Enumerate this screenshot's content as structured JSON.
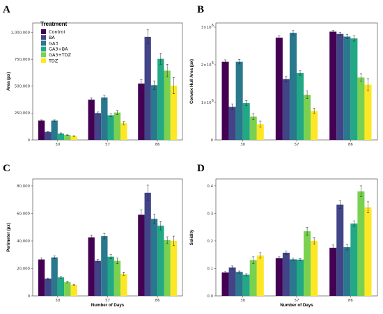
{
  "legend": {
    "title": "Treatment",
    "entries": [
      "Control",
      "BA",
      "GA3",
      "GA3+BA",
      "GA3+TDZ",
      "TDZ"
    ]
  },
  "colors": [
    "#440154",
    "#414487",
    "#2a788e",
    "#22a884",
    "#7ad151",
    "#fde725"
  ],
  "chart_data": [
    {
      "type": "bar",
      "panel": "A",
      "xlabel": "",
      "ylabel": "Area (px)",
      "categories": [
        "30",
        "57",
        "86"
      ],
      "ylim": [
        0,
        1050000
      ],
      "yticks": [
        0,
        250000,
        500000,
        750000,
        1000000
      ],
      "yticklabels": [
        "0",
        "250,000",
        "500,000",
        "750,000",
        "1,000,000"
      ],
      "series": [
        {
          "name": "Control",
          "values": [
            180000,
            375000,
            525000
          ],
          "err": [
            8000,
            15000,
            35000
          ]
        },
        {
          "name": "BA",
          "values": [
            75000,
            250000,
            960000
          ],
          "err": [
            5000,
            10000,
            65000
          ]
        },
        {
          "name": "GA3",
          "values": [
            180000,
            395000,
            510000
          ],
          "err": [
            8000,
            20000,
            40000
          ]
        },
        {
          "name": "GA3+BA",
          "values": [
            60000,
            230000,
            755000
          ],
          "err": [
            5000,
            12000,
            50000
          ]
        },
        {
          "name": "GA3+TDZ",
          "values": [
            45000,
            255000,
            645000
          ],
          "err": [
            4000,
            18000,
            60000
          ]
        },
        {
          "name": "TDZ",
          "values": [
            35000,
            155000,
            505000
          ],
          "err": [
            4000,
            15000,
            75000
          ]
        }
      ]
    },
    {
      "type": "bar",
      "panel": "B",
      "xlabel": "",
      "ylabel": "Convex Hull Area (px)",
      "categories": [
        "30",
        "57",
        "86"
      ],
      "ylim": [
        0,
        3
      ],
      "yticks": [
        0,
        1,
        2,
        3
      ],
      "yticklabels": [
        "0",
        "1×10",
        "2×10",
        "3×10"
      ],
      "tick_exponent": "6",
      "series": [
        {
          "name": "Control",
          "values": [
            2.08,
            2.72,
            2.88
          ],
          "err": [
            0.05,
            0.05,
            0.04
          ]
        },
        {
          "name": "BA",
          "values": [
            0.88,
            1.62,
            2.82
          ],
          "err": [
            0.08,
            0.08,
            0.04
          ]
        },
        {
          "name": "GA3",
          "values": [
            2.08,
            2.85,
            2.75
          ],
          "err": [
            0.06,
            0.06,
            0.06
          ]
        },
        {
          "name": "GA3+BA",
          "values": [
            0.98,
            1.78,
            2.7
          ],
          "err": [
            0.07,
            0.06,
            0.07
          ]
        },
        {
          "name": "GA3+TDZ",
          "values": [
            0.62,
            1.2,
            1.66
          ],
          "err": [
            0.08,
            0.1,
            0.1
          ]
        },
        {
          "name": "TDZ",
          "values": [
            0.42,
            0.77,
            1.47
          ],
          "err": [
            0.08,
            0.07,
            0.16
          ]
        }
      ]
    },
    {
      "type": "bar",
      "panel": "C",
      "xlabel": "Number of Days",
      "ylabel": "Perimeter (px)",
      "categories": [
        "30",
        "57",
        "86"
      ],
      "ylim": [
        0,
        82000
      ],
      "yticks": [
        0,
        20000,
        40000,
        60000,
        80000
      ],
      "yticklabels": [
        "0",
        "20,000",
        "40,000",
        "60,000",
        "80,000"
      ],
      "series": [
        {
          "name": "Control",
          "values": [
            26500,
            42500,
            59000
          ],
          "err": [
            1000,
            1500,
            3500
          ]
        },
        {
          "name": "BA",
          "values": [
            12500,
            25500,
            75000
          ],
          "err": [
            500,
            1000,
            5500
          ]
        },
        {
          "name": "GA3",
          "values": [
            28000,
            43500,
            56000
          ],
          "err": [
            1000,
            2000,
            3500
          ]
        },
        {
          "name": "GA3+BA",
          "values": [
            13500,
            28500,
            51000
          ],
          "err": [
            500,
            1500,
            3000
          ]
        },
        {
          "name": "GA3+TDZ",
          "values": [
            10000,
            25500,
            40500
          ],
          "err": [
            500,
            2000,
            2500
          ]
        },
        {
          "name": "TDZ",
          "values": [
            8000,
            16000,
            40000
          ],
          "err": [
            500,
            1000,
            3500
          ]
        }
      ]
    },
    {
      "type": "bar",
      "panel": "D",
      "xlabel": "Number of Days",
      "ylabel": "Solidity",
      "categories": [
        "30",
        "57",
        "86"
      ],
      "ylim": [
        0,
        0.41
      ],
      "yticks": [
        0,
        0.1,
        0.2,
        0.3,
        0.4
      ],
      "yticklabels": [
        "0.0",
        "0.1",
        "0.2",
        "0.3",
        "0.4"
      ],
      "series": [
        {
          "name": "Control",
          "values": [
            0.085,
            0.137,
            0.175
          ],
          "err": [
            0.004,
            0.005,
            0.01
          ]
        },
        {
          "name": "BA",
          "values": [
            0.103,
            0.157,
            0.332
          ],
          "err": [
            0.006,
            0.006,
            0.015
          ]
        },
        {
          "name": "GA3",
          "values": [
            0.087,
            0.133,
            0.177
          ],
          "err": [
            0.004,
            0.004,
            0.01
          ]
        },
        {
          "name": "GA3+BA",
          "values": [
            0.077,
            0.132,
            0.263
          ],
          "err": [
            0.004,
            0.004,
            0.01
          ]
        },
        {
          "name": "GA3+TDZ",
          "values": [
            0.13,
            0.235,
            0.38
          ],
          "err": [
            0.012,
            0.015,
            0.02
          ]
        },
        {
          "name": "TDZ",
          "values": [
            0.147,
            0.2,
            0.322
          ],
          "err": [
            0.01,
            0.012,
            0.02
          ]
        }
      ]
    }
  ]
}
